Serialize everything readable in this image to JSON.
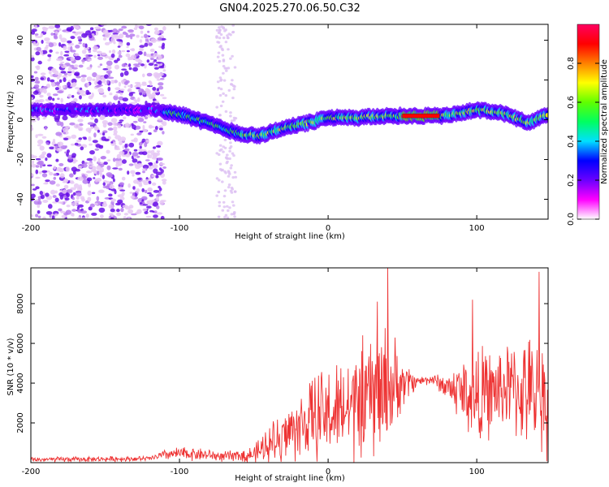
{
  "figure_title": "GN04.2025.270.06.50.C32",
  "chart_data": [
    {
      "type": "heatmap",
      "title": "GN04.2025.270.06.50.C32",
      "xlabel": "Height of straight line (km)",
      "ylabel": "Frequency (Hz)",
      "xlim": [
        -200,
        148
      ],
      "ylim": [
        -50,
        48
      ],
      "xticks": [
        -200,
        -100,
        0,
        100
      ],
      "yticks": [
        -40,
        -20,
        0,
        20,
        40
      ],
      "colorbar": {
        "label": "Normalized spectral amplitude",
        "range": [
          0,
          1
        ],
        "ticks": [
          0.0,
          0.2,
          0.4,
          0.6,
          0.8
        ],
        "tick_labels": [
          "0.0",
          "0.2",
          "0.4",
          "0.6",
          "0.8"
        ],
        "colors": [
          "#ffffff",
          "#ff00ff",
          "#6a00ff",
          "#0000ff",
          "#00e0ff",
          "#00ff60",
          "#60ff00",
          "#ffff00",
          "#ff8000",
          "#ff0000",
          "#ff0060"
        ]
      },
      "ridge": {
        "description_points_x": [
          -200,
          -150,
          -120,
          -100,
          -80,
          -60,
          -45,
          -30,
          -10,
          0,
          20,
          40,
          60,
          80,
          100,
          120,
          135,
          148
        ],
        "description_points_y": [
          5,
          5,
          5,
          3,
          -2,
          -7,
          -8,
          -4,
          -1,
          1,
          1,
          2,
          2,
          2,
          5,
          3,
          -2,
          3
        ],
        "peak_amplitude_region_x": [
          50,
          75
        ],
        "peak_amplitude_region_y": 2
      },
      "noise_region_x": [
        -200,
        -110
      ],
      "noise_band_x": [
        -75,
        -62
      ]
    },
    {
      "type": "line",
      "xlabel": "Height of straight line (km)",
      "ylabel": "SNR (10 * v/v)",
      "xlim": [
        -200,
        148
      ],
      "ylim": [
        0,
        9800
      ],
      "xticks": [
        -200,
        -100,
        0,
        100
      ],
      "yticks": [
        2000,
        4000,
        6000,
        8000
      ],
      "color": "#ee3333",
      "envelope": {
        "x": [
          -200,
          -120,
          -110,
          -100,
          -90,
          -70,
          -50,
          -40,
          -30,
          -20,
          -10,
          0,
          10,
          20,
          30,
          40,
          50,
          60,
          70,
          80,
          90,
          100,
          110,
          120,
          130,
          140,
          148
        ],
        "baseline": [
          150,
          200,
          400,
          450,
          450,
          300,
          400,
          900,
          1400,
          1800,
          2200,
          2400,
          2600,
          3000,
          3400,
          3700,
          4000,
          4100,
          4200,
          3800,
          3600,
          3300,
          3500,
          3800,
          3600,
          3400,
          3400
        ],
        "spread": [
          150,
          150,
          300,
          400,
          400,
          300,
          500,
          1200,
          1600,
          2000,
          2500,
          2800,
          3000,
          3400,
          3800,
          4000,
          1500,
          300,
          300,
          800,
          2000,
          3000,
          2500,
          2600,
          3000,
          3500,
          3500
        ]
      },
      "notable_peaks": [
        {
          "x": 40,
          "y": 9800
        },
        {
          "x": 142,
          "y": 9600
        },
        {
          "x": 97,
          "y": 8200
        },
        {
          "x": 33,
          "y": 8100
        }
      ]
    }
  ]
}
